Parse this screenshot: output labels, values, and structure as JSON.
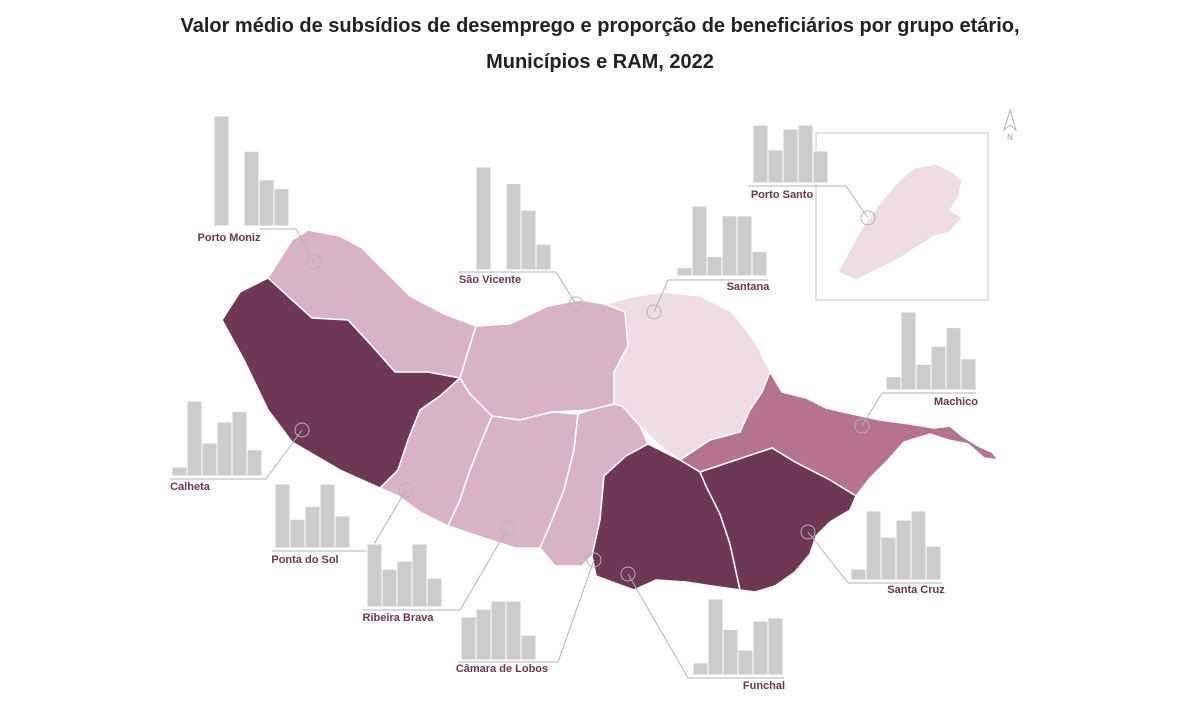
{
  "title": {
    "line1": "Valor médio de subsídios de desemprego e proporção de beneficiários por grupo etário,",
    "line2": "Municípios e RAM, 2022"
  },
  "north_label": "N",
  "colors": {
    "bar": "#cccccc",
    "bar_stroke": "#ffffff",
    "leader_line": "#b3b3b3",
    "label": "#6a3551",
    "class_1_lightest": "#eedde4",
    "class_2": "#d8b3c8",
    "class_3": "#b6738f",
    "class_4_darkest": "#6e3755"
  },
  "municipalities": [
    {
      "id": "porto-moniz",
      "label": "Porto Moniz",
      "bars": [
        100,
        0,
        68,
        42,
        34
      ],
      "class": 2
    },
    {
      "id": "sao-vicente",
      "label": "São Vicente",
      "bars": [
        100,
        0,
        84,
        58,
        25
      ],
      "class": 2
    },
    {
      "id": "santana",
      "label": "Santana",
      "bars": [
        12,
        100,
        28,
        86,
        86,
        35
      ],
      "class": 1
    },
    {
      "id": "porto-santo",
      "label": "Porto Santo",
      "bars": [
        100,
        57,
        93,
        100,
        55
      ],
      "class": 1
    },
    {
      "id": "machico",
      "label": "Machico",
      "bars": [
        17,
        100,
        33,
        56,
        80,
        40
      ],
      "class": 3
    },
    {
      "id": "calheta",
      "label": "Calheta",
      "bars": [
        12,
        100,
        44,
        72,
        86,
        35
      ],
      "class": 4
    },
    {
      "id": "ponta-do-sol",
      "label": "Ponta do Sol",
      "bars": [
        100,
        45,
        65,
        100,
        50
      ],
      "class": 2
    },
    {
      "id": "ribeira-brava",
      "label": "Ribeira Brava",
      "bars": [
        100,
        60,
        73,
        100,
        46
      ],
      "class": 2
    },
    {
      "id": "camara-de-lobos",
      "label": "Câmara de Lobos",
      "bars": [
        73,
        86,
        100,
        100,
        42
      ],
      "class": 2
    },
    {
      "id": "funchal",
      "label": "Funchal",
      "bars": [
        16,
        100,
        60,
        33,
        71,
        75
      ],
      "class": 4
    },
    {
      "id": "santa-cruz",
      "label": "Santa Cruz",
      "bars": [
        16,
        100,
        62,
        87,
        100,
        49
      ],
      "class": 4
    }
  ]
}
